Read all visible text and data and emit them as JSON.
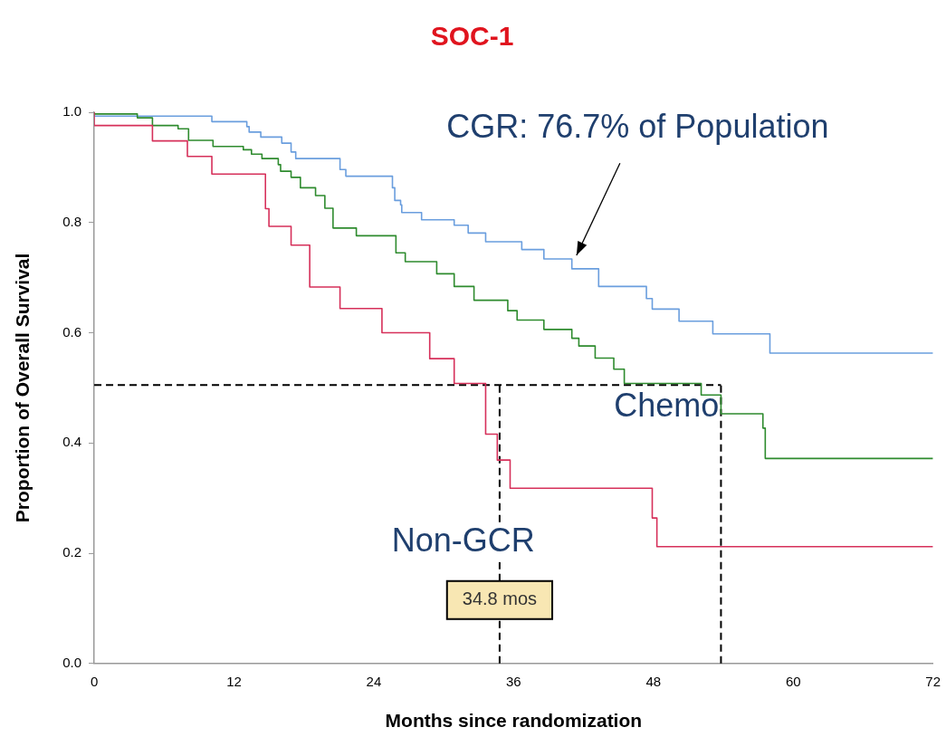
{
  "chart_data": {
    "type": "step",
    "title": "SOC-1",
    "xlabel": "Months since randomization",
    "ylabel": "Proportion of Overall Survival",
    "xlim": [
      0,
      72
    ],
    "xticks": [
      0,
      12,
      24,
      36,
      48,
      60,
      72
    ],
    "ylim": [
      0,
      1
    ],
    "yticks": [
      {
        "value": 0,
        "label": "0.0"
      },
      0.2,
      0.4,
      0.6,
      0.8,
      {
        "value": 1,
        "label": "1.0"
      }
    ],
    "grid": false,
    "legend": false,
    "marker": "none",
    "line_style": "solid",
    "series": [
      {
        "name": "CGR: 76.7% of Population",
        "color": "#6a9ede",
        "x": [
          0,
          10.1,
          13.1,
          13.3,
          14.3,
          16.1,
          16.9,
          17.3,
          21.1,
          21.6,
          25.6,
          25.8,
          26.3,
          26.4,
          28.1,
          30.9,
          32.1,
          33.6,
          36.7,
          38.6,
          41.0,
          43.3,
          47.4,
          47.9,
          50.2,
          53.1,
          58.0,
          66.1,
          72
        ],
        "values": [
          1.0,
          0.993,
          0.983,
          0.974,
          0.964,
          0.955,
          0.944,
          0.928,
          0.916,
          0.896,
          0.884,
          0.863,
          0.84,
          0.832,
          0.818,
          0.805,
          0.795,
          0.781,
          0.765,
          0.751,
          0.734,
          0.716,
          0.684,
          0.662,
          0.643,
          0.621,
          0.598,
          0.563,
          0.563
        ]
      },
      {
        "name": "Chemo",
        "color": "#2e8b2e",
        "x": [
          0,
          3.7,
          5.0,
          7.2,
          8.1,
          10.2,
          12.8,
          13.5,
          14.4,
          15.8,
          16.0,
          16.9,
          17.7,
          19.0,
          19.8,
          20.5,
          22.5,
          25.9,
          26.7,
          29.4,
          30.9,
          32.6,
          35.5,
          36.3,
          38.6,
          41.0,
          41.6,
          43.0,
          44.6,
          45.5,
          52.1,
          53.8,
          57.4,
          57.6,
          65.8,
          72
        ],
        "values": [
          1.0,
          0.997,
          0.99,
          0.976,
          0.97,
          0.949,
          0.938,
          0.932,
          0.924,
          0.916,
          0.905,
          0.893,
          0.882,
          0.863,
          0.849,
          0.826,
          0.79,
          0.776,
          0.745,
          0.729,
          0.707,
          0.684,
          0.659,
          0.64,
          0.623,
          0.606,
          0.59,
          0.576,
          0.554,
          0.534,
          0.508,
          0.487,
          0.453,
          0.427,
          0.372,
          0.372
        ]
      },
      {
        "name": "Non-GCR",
        "color": "#d6305a",
        "x": [
          0,
          5.0,
          8.0,
          10.1,
          14.7,
          15.0,
          16.9,
          18.5,
          21.1,
          24.7,
          28.8,
          30.9,
          33.6,
          34.6,
          35.7,
          47.9,
          48.3,
          51.4,
          72
        ],
        "values": [
          1.0,
          0.976,
          0.948,
          0.92,
          0.888,
          0.825,
          0.793,
          0.759,
          0.683,
          0.644,
          0.6,
          0.553,
          0.508,
          0.416,
          0.369,
          0.318,
          0.264,
          0.212,
          0.212
        ]
      }
    ],
    "ref_lines": [
      {
        "axis": "y",
        "value": 0.505,
        "color": "#000000",
        "line_style": "dashed"
      },
      {
        "axis": "x",
        "value": 34.8,
        "color": "#000000",
        "line_style": "dashed"
      },
      {
        "axis": "x",
        "value": 53.8,
        "color": "#000000",
        "line_style": "dashed"
      }
    ],
    "annotations": [
      "34.8 mos"
    ]
  }
}
